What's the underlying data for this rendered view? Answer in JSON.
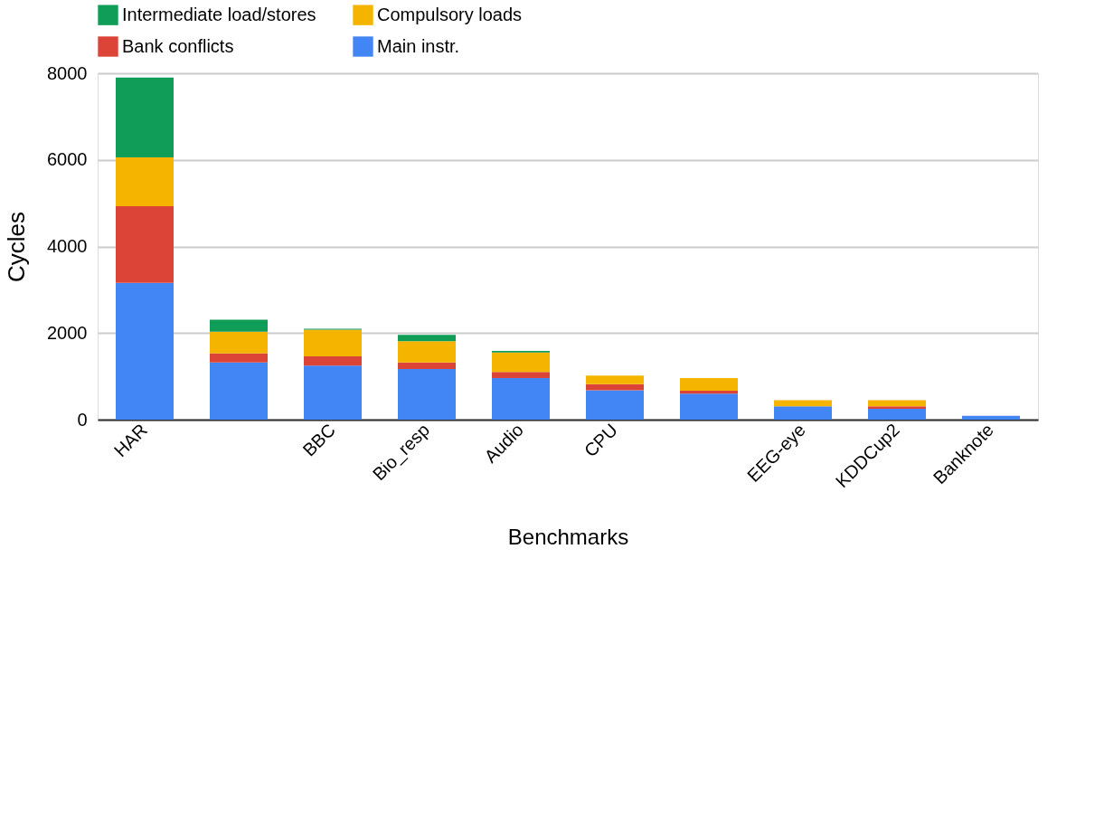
{
  "chart_data": {
    "type": "bar",
    "stacked": true,
    "xlabel": "Benchmarks",
    "ylabel": "Cycles",
    "categories": [
      "HAR",
      null,
      "BBC",
      "Bio_resp",
      "Audio",
      "CPU",
      null,
      "EEG-eye",
      "KDDCup2",
      "Banknote"
    ],
    "series": [
      {
        "name": "Main instr.",
        "color": "#4285f4",
        "values": [
          3160,
          1320,
          1250,
          1170,
          960,
          680,
          600,
          310,
          250,
          90
        ]
      },
      {
        "name": "Bank conflicts",
        "color": "#db4437",
        "values": [
          1770,
          210,
          210,
          150,
          140,
          140,
          70,
          0,
          60,
          0
        ]
      },
      {
        "name": "Compulsory loads",
        "color": "#f4b400",
        "values": [
          1130,
          500,
          620,
          490,
          450,
          200,
          290,
          140,
          140,
          0
        ]
      },
      {
        "name": "Intermediate load/stores",
        "color": "#0f9d58",
        "values": [
          1840,
          280,
          20,
          150,
          40,
          0,
          0,
          0,
          0,
          0
        ]
      }
    ],
    "ylim": [
      0,
      8000
    ],
    "yticks": [
      0,
      2000,
      4000,
      6000,
      8000
    ],
    "grid": "y",
    "legend": "top"
  }
}
